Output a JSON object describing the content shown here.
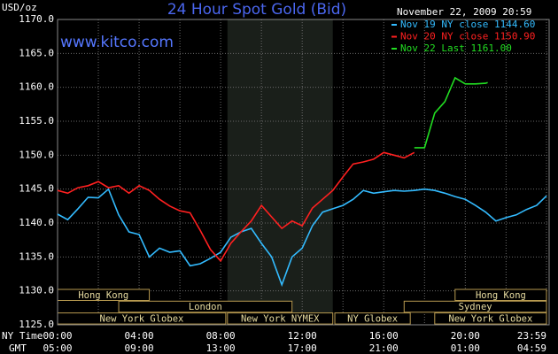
{
  "chart_data": {
    "type": "line",
    "title": "24 Hour Spot Gold (Bid)",
    "y_unit": "USD/oz",
    "date": "November 22, 2009 20:59",
    "website": "www.kitco.com",
    "x_row_labels": [
      "NY Time",
      "GMT"
    ],
    "xlim": [
      0,
      23.983
    ],
    "ylim": [
      1125,
      1170
    ],
    "yticks": [
      {
        "value": 1125,
        "label": "1125.0"
      },
      {
        "value": 1130,
        "label": "1130.0"
      },
      {
        "value": 1135,
        "label": "1135.0"
      },
      {
        "value": 1140,
        "label": "1140.0"
      },
      {
        "value": 1145,
        "label": "1145.0"
      },
      {
        "value": 1150,
        "label": "1150.0"
      },
      {
        "value": 1155,
        "label": "1155.0"
      },
      {
        "value": 1160,
        "label": "1160.0"
      },
      {
        "value": 1165,
        "label": "1165.0"
      },
      {
        "value": 1170,
        "label": "1170.0"
      }
    ],
    "xticks": [
      {
        "value": 0,
        "label": "00:00"
      },
      {
        "value": 4,
        "label": "04:00"
      },
      {
        "value": 8,
        "label": "08:00"
      },
      {
        "value": 12,
        "label": "12:00"
      },
      {
        "value": 16,
        "label": "16:00"
      },
      {
        "value": 20,
        "label": "20:00"
      },
      {
        "value": 23.983,
        "label": "23:59"
      }
    ],
    "x_gmt_ticks": [
      {
        "value": 0,
        "label": "05:00"
      },
      {
        "value": 4,
        "label": "09:00"
      },
      {
        "value": 8,
        "label": "13:00"
      },
      {
        "value": 12,
        "label": "17:00"
      },
      {
        "value": 16,
        "label": "21:00"
      },
      {
        "value": 20,
        "label": "01:00"
      },
      {
        "value": 23.983,
        "label": "04:59"
      }
    ],
    "x_minor_grid": [
      2,
      6,
      10,
      14,
      18,
      22
    ],
    "grid": true,
    "shaded_range": [
      8.333,
      13.5
    ],
    "session_rows": [
      [
        {
          "name": "Hong Kong",
          "start": 0,
          "end": 4.5
        },
        {
          "name": "Hong Kong",
          "start": 19.5,
          "end": 23.983
        }
      ],
      [
        {
          "name": "London",
          "start": 3,
          "end": 11.5
        },
        {
          "name": "Sydney",
          "start": 17,
          "end": 23.983
        }
      ],
      [
        {
          "name": "New York Globex",
          "start": 0,
          "end": 8.25
        },
        {
          "name": "New York NYMEX",
          "start": 8.333,
          "end": 13.5
        },
        {
          "name": "NY Globex",
          "start": 13.6,
          "end": 17.3
        },
        {
          "name": "New York Globex",
          "start": 18.5,
          "end": 23.983
        }
      ]
    ],
    "series": [
      {
        "name": "Nov 19 NY close 1144.60",
        "color": "#33bbff",
        "x": [
          0,
          0.5,
          1,
          1.5,
          2,
          2.5,
          3,
          3.5,
          4,
          4.5,
          5,
          5.5,
          6,
          6.5,
          7,
          7.5,
          8,
          8.5,
          9,
          9.5,
          10,
          10.5,
          11,
          11.5,
          12,
          12.5,
          13,
          13.5,
          14,
          14.5,
          15,
          15.5,
          16,
          16.5,
          17,
          17.5,
          18,
          18.5,
          19,
          19.5,
          20,
          20.5,
          21,
          21.5,
          22,
          22.5,
          23,
          23.5,
          23.983
        ],
        "values": [
          1141.3,
          1140.5,
          1142.1,
          1143.8,
          1143.7,
          1145.0,
          1141.2,
          1138.7,
          1138.3,
          1135.0,
          1136.3,
          1135.7,
          1135.9,
          1133.7,
          1134.0,
          1134.8,
          1135.7,
          1137.9,
          1138.7,
          1139.2,
          1137.0,
          1135.0,
          1130.9,
          1135.0,
          1136.3,
          1139.6,
          1141.6,
          1142.1,
          1142.6,
          1143.5,
          1144.8,
          1144.4,
          1144.6,
          1144.8,
          1144.7,
          1144.8,
          1145.0,
          1144.8,
          1144.4,
          1143.9,
          1143.5,
          1142.6,
          1141.6,
          1140.3,
          1140.8,
          1141.2,
          1142.0,
          1142.6,
          1144.0
        ]
      },
      {
        "name": "Nov 20 NY close 1150.90",
        "color": "#ff2020",
        "x": [
          0,
          0.5,
          1,
          1.5,
          2,
          2.5,
          3,
          3.5,
          4,
          4.5,
          5,
          5.5,
          6,
          6.5,
          7,
          7.5,
          8,
          8.5,
          9,
          9.5,
          10,
          10.5,
          11,
          11.5,
          12,
          12.5,
          13,
          13.5,
          14,
          14.5,
          15,
          15.5,
          16,
          16.5,
          17,
          17.5
        ],
        "values": [
          1144.8,
          1144.4,
          1145.2,
          1145.5,
          1146.1,
          1145.2,
          1145.5,
          1144.4,
          1145.5,
          1144.8,
          1143.5,
          1142.5,
          1141.8,
          1141.5,
          1138.9,
          1136.1,
          1134.4,
          1137.0,
          1138.7,
          1140.3,
          1142.6,
          1140.9,
          1139.2,
          1140.3,
          1139.6,
          1142.2,
          1143.5,
          1144.8,
          1146.8,
          1148.7,
          1149.0,
          1149.4,
          1150.4,
          1150.0,
          1149.6,
          1150.4
        ]
      },
      {
        "name": "Nov 22 Last 1161.00",
        "color": "#22dd22",
        "x": [
          17.5,
          18,
          18.5,
          19,
          19.5,
          20,
          20.5,
          21,
          21.1
        ],
        "values": [
          1151.1,
          1151.1,
          1156.2,
          1157.9,
          1161.4,
          1160.5,
          1160.5,
          1160.6,
          1160.7
        ]
      }
    ]
  }
}
